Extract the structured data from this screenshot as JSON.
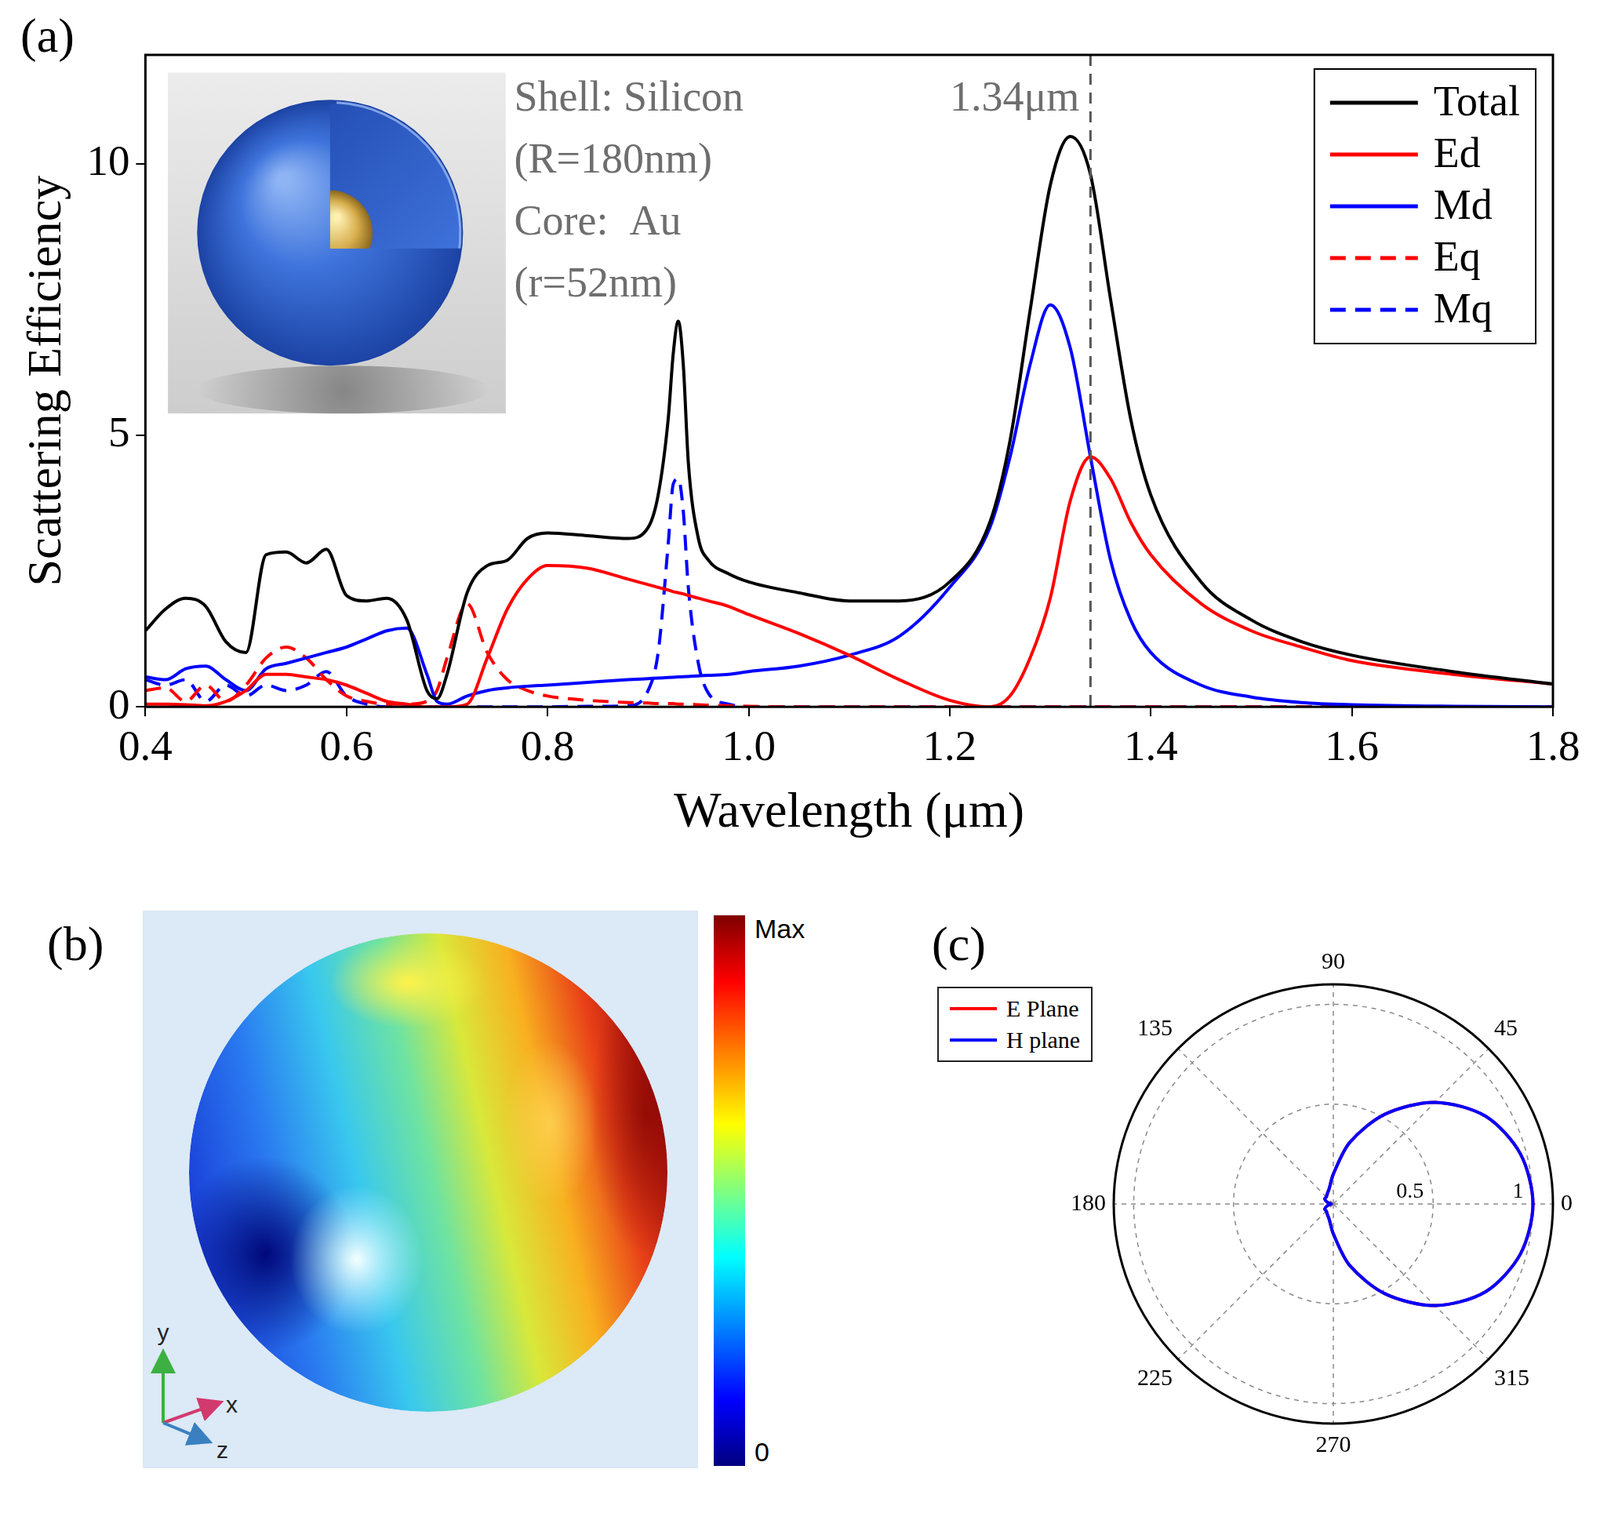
{
  "chart_data": [
    {
      "panel": "(a)",
      "type": "line",
      "x_label": "Wavelength (μm)",
      "y_label": "Scattering Efficiency",
      "inset_text": [
        "Shell: Silicon",
        "(R=180nm)",
        "Core:  Au",
        "(r=52nm)"
      ],
      "annotations": [
        {
          "text": "1.34μm",
          "x": 1.34
        }
      ],
      "x": [
        0.4,
        0.42,
        0.44,
        0.46,
        0.48,
        0.5,
        0.52,
        0.54,
        0.56,
        0.58,
        0.6,
        0.62,
        0.64,
        0.66,
        0.68,
        0.69,
        0.7,
        0.72,
        0.74,
        0.76,
        0.78,
        0.8,
        0.84,
        0.88,
        0.9,
        0.91,
        0.92,
        0.925,
        0.93,
        0.935,
        0.94,
        0.95,
        0.96,
        0.98,
        1.0,
        1.05,
        1.1,
        1.15,
        1.2,
        1.24,
        1.26,
        1.28,
        1.3,
        1.32,
        1.34,
        1.36,
        1.38,
        1.4,
        1.45,
        1.5,
        1.55,
        1.6,
        1.7,
        1.8
      ],
      "series": [
        {
          "name": "Total",
          "color": "#000000",
          "line_style": "solid",
          "values": [
            1.4,
            1.8,
            2.0,
            1.85,
            1.2,
            1.0,
            2.8,
            2.85,
            2.65,
            2.9,
            2.05,
            1.95,
            2.0,
            1.6,
            0.3,
            0.15,
            0.6,
            2.1,
            2.6,
            2.7,
            3.1,
            3.2,
            3.15,
            3.1,
            3.3,
            3.9,
            5.3,
            6.5,
            7.1,
            6.3,
            4.5,
            3.1,
            2.7,
            2.45,
            2.3,
            2.1,
            1.95,
            1.95,
            2.3,
            3.4,
            4.9,
            7.3,
            9.6,
            10.5,
            9.8,
            7.5,
            5.3,
            3.9,
            2.3,
            1.6,
            1.2,
            0.95,
            0.65,
            0.42
          ]
        },
        {
          "name": "Ed",
          "color": "#ff0000",
          "line_style": "solid",
          "values": [
            0.05,
            0.05,
            0.04,
            0.02,
            0.1,
            0.3,
            0.6,
            0.6,
            0.55,
            0.5,
            0.4,
            0.25,
            0.1,
            0.05,
            0.0,
            0.0,
            0.0,
            0.05,
            0.9,
            1.8,
            2.35,
            2.6,
            2.55,
            2.35,
            2.25,
            2.2,
            2.15,
            2.12,
            2.1,
            2.08,
            2.05,
            2.0,
            1.95,
            1.85,
            1.7,
            1.35,
            0.95,
            0.5,
            0.12,
            0.0,
            0.2,
            0.9,
            2.0,
            3.8,
            4.6,
            4.2,
            3.4,
            2.8,
            1.9,
            1.4,
            1.1,
            0.85,
            0.6,
            0.42
          ]
        },
        {
          "name": "Md",
          "color": "#0000ff",
          "line_style": "solid",
          "values": [
            0.55,
            0.5,
            0.7,
            0.75,
            0.5,
            0.3,
            0.7,
            0.8,
            0.9,
            1.0,
            1.1,
            1.25,
            1.4,
            1.45,
            0.6,
            0.1,
            0.05,
            0.2,
            0.3,
            0.35,
            0.38,
            0.4,
            0.45,
            0.5,
            0.52,
            0.53,
            0.54,
            0.545,
            0.55,
            0.555,
            0.56,
            0.57,
            0.58,
            0.6,
            0.65,
            0.75,
            0.95,
            1.3,
            2.2,
            3.3,
            4.6,
            6.3,
            7.4,
            6.6,
            4.6,
            2.7,
            1.6,
            1.0,
            0.4,
            0.18,
            0.08,
            0.04,
            0.01,
            0.0
          ]
        },
        {
          "name": "Eq",
          "color": "#ff0000",
          "line_style": "dashed",
          "values": [
            0.3,
            0.35,
            0.1,
            0.4,
            0.1,
            0.4,
            0.9,
            1.1,
            0.9,
            0.5,
            0.2,
            0.1,
            0.05,
            0.05,
            0.1,
            0.3,
            0.9,
            1.9,
            1.0,
            0.5,
            0.3,
            0.2,
            0.12,
            0.08,
            0.07,
            0.06,
            0.06,
            0.06,
            0.05,
            0.05,
            0.05,
            0.04,
            0.03,
            0.02,
            0.01,
            0,
            0,
            0,
            0,
            0,
            0,
            0,
            0,
            0,
            0,
            0,
            0,
            0,
            0,
            0,
            0,
            0,
            0,
            0
          ]
        },
        {
          "name": "Mq",
          "color": "#0000ff",
          "line_style": "dashed",
          "values": [
            0.5,
            0.4,
            0.5,
            0.1,
            0.4,
            0.2,
            0.4,
            0.3,
            0.4,
            0.65,
            0.2,
            0.05,
            0,
            0,
            0,
            0,
            0,
            0,
            0,
            0,
            0,
            0,
            0.01,
            0.02,
            0.3,
            1.0,
            3.0,
            4.1,
            4.2,
            3.6,
            2.2,
            0.8,
            0.25,
            0.05,
            0,
            0,
            0,
            0,
            0,
            0,
            0,
            0,
            0,
            0,
            0,
            0,
            0,
            0,
            0,
            0,
            0,
            0,
            0,
            0
          ]
        }
      ],
      "xlim": [
        0.4,
        1.8
      ],
      "xticks": [
        0.4,
        0.6,
        0.8,
        {
          "value": 1,
          "label": "1.0"
        },
        1.2,
        1.4,
        1.6,
        1.8
      ],
      "ylim": [
        0,
        12
      ],
      "yticks": [
        0,
        5,
        10
      ],
      "grid": false,
      "legend": "upper right"
    },
    {
      "panel": "(c)",
      "type": "polar",
      "theta": [
        0,
        15,
        30,
        45,
        60,
        75,
        90,
        105,
        120,
        135,
        150,
        165,
        180,
        195,
        210,
        225,
        240,
        255,
        270,
        285,
        300,
        315,
        330,
        345
      ],
      "thetaticks": [
        0,
        45,
        90,
        135,
        180,
        225,
        270,
        315
      ],
      "series": [
        {
          "name": "E Plane",
          "color": "#ff0000",
          "values": [
            1.0,
            0.97,
            0.88,
            0.72,
            0.52,
            0.32,
            0.15,
            0.08,
            0.06,
            0.05,
            0.05,
            0.03,
            0.01,
            0.03,
            0.05,
            0.05,
            0.06,
            0.08,
            0.15,
            0.32,
            0.52,
            0.72,
            0.88,
            0.97
          ]
        },
        {
          "name": "H plane",
          "color": "#0000ff",
          "values": [
            1.0,
            0.97,
            0.88,
            0.72,
            0.52,
            0.32,
            0.15,
            0.08,
            0.06,
            0.05,
            0.05,
            0.03,
            0.01,
            0.03,
            0.05,
            0.05,
            0.06,
            0.08,
            0.15,
            0.32,
            0.52,
            0.72,
            0.88,
            0.97
          ]
        }
      ],
      "rlim": [
        0,
        1.1
      ],
      "rticks": [
        0.5,
        1
      ],
      "grid": true,
      "legend": "upper left"
    }
  ],
  "field_map": {
    "panel": "(b)",
    "colorbar_labels": [
      "Max",
      "0"
    ],
    "axes": [
      "y",
      "x",
      "z"
    ]
  }
}
